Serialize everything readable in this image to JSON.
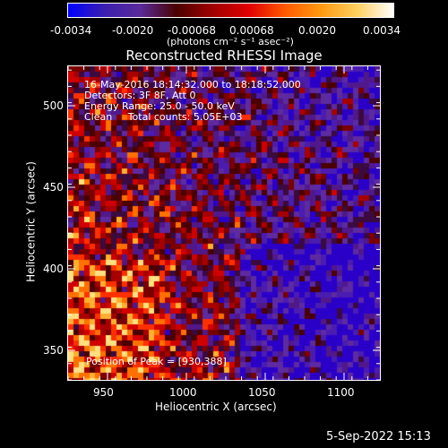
{
  "colorbar": {
    "ticks": [
      "-0.0034",
      "-0.0020",
      "-0.00068",
      "0.00068",
      "0.0020",
      "0.0034"
    ],
    "units": "(photons cm⁻² s⁻¹ asec⁻²)",
    "colors": [
      "#0000ff",
      "#3b1fb0",
      "#5a2a9a",
      "#4a0000",
      "#a00000",
      "#e00000",
      "#ff5a00",
      "#ff9a10",
      "#ffd060",
      "#ffffff"
    ]
  },
  "plot": {
    "title": "Reconstructed RHESSI Image",
    "info": [
      "16-May-2016 18:14:32.000 to 18:18:52.000",
      "Detectors: 3F 8F, Att 0",
      "Energy Range: 25.0 - 50.0 keV",
      "Clean     Total counts: 5.05E+03"
    ],
    "peak": "Position of Peak = [930,388]",
    "xlabel": "Heliocentric X (arcsec)",
    "ylabel": "Heliocentric Y (arcsec)",
    "xticks": [
      "950",
      "1000",
      "1050",
      "1100"
    ],
    "yticks": [
      "350",
      "400",
      "450",
      "500"
    ]
  },
  "footer": {
    "timestamp": "5-Sep-2022 15:13"
  }
}
